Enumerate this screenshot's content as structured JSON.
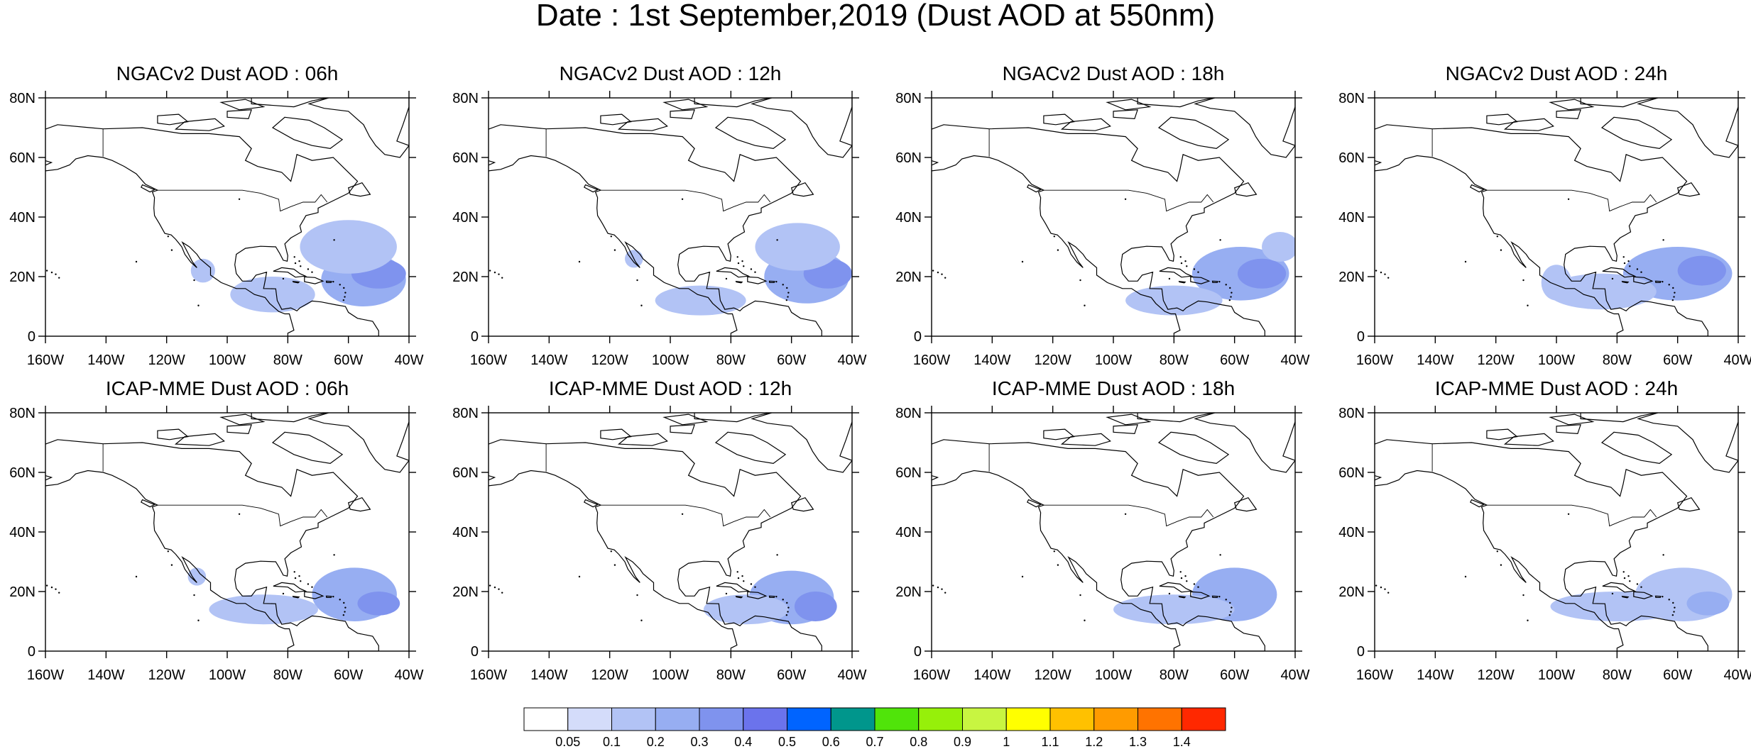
{
  "main_title": "Date : 1st September,2019 (Dust AOD at 550nm)",
  "map_extent": {
    "lon": [
      -160,
      -40
    ],
    "lat": [
      0,
      80
    ]
  },
  "x_tick_labels": [
    "160W",
    "140W",
    "120W",
    "100W",
    "80W",
    "60W",
    "40W"
  ],
  "y_tick_labels": [
    "0",
    "20N",
    "40N",
    "60N",
    "80N"
  ],
  "panels": [
    {
      "title": "NGACv2 Dust AOD : 06h",
      "model": "NGACv2",
      "hour": "06h",
      "dust": [
        {
          "cx": -55,
          "cy": 19,
          "rx": 14,
          "ry": 9,
          "aod": 0.25
        },
        {
          "cx": -50,
          "cy": 21,
          "rx": 9,
          "ry": 5,
          "aod": 0.35
        },
        {
          "cx": -85,
          "cy": 14,
          "rx": 14,
          "ry": 6,
          "aod": 0.15
        },
        {
          "cx": -108,
          "cy": 22,
          "rx": 4,
          "ry": 4,
          "aod": 0.15
        },
        {
          "cx": -60,
          "cy": 30,
          "rx": 16,
          "ry": 9,
          "aod": 0.12
        }
      ]
    },
    {
      "title": "NGACv2 Dust AOD : 12h",
      "model": "NGACv2",
      "hour": "12h",
      "dust": [
        {
          "cx": -55,
          "cy": 20,
          "rx": 14,
          "ry": 9,
          "aod": 0.25
        },
        {
          "cx": -48,
          "cy": 21,
          "rx": 8,
          "ry": 5,
          "aod": 0.35
        },
        {
          "cx": -90,
          "cy": 12,
          "rx": 15,
          "ry": 5,
          "aod": 0.15
        },
        {
          "cx": -112,
          "cy": 26,
          "rx": 3,
          "ry": 3,
          "aod": 0.12
        },
        {
          "cx": -58,
          "cy": 30,
          "rx": 14,
          "ry": 8,
          "aod": 0.12
        }
      ]
    },
    {
      "title": "NGACv2 Dust AOD : 18h",
      "model": "NGACv2",
      "hour": "18h",
      "dust": [
        {
          "cx": -58,
          "cy": 21,
          "rx": 16,
          "ry": 9,
          "aod": 0.25
        },
        {
          "cx": -51,
          "cy": 21,
          "rx": 8,
          "ry": 5,
          "aod": 0.35
        },
        {
          "cx": -80,
          "cy": 12,
          "rx": 16,
          "ry": 5,
          "aod": 0.15
        },
        {
          "cx": -45,
          "cy": 30,
          "rx": 6,
          "ry": 5,
          "aod": 0.12
        }
      ]
    },
    {
      "title": "NGACv2 Dust AOD : 24h",
      "model": "NGACv2",
      "hour": "24h",
      "dust": [
        {
          "cx": -60,
          "cy": 21,
          "rx": 18,
          "ry": 9,
          "aod": 0.25
        },
        {
          "cx": -52,
          "cy": 22,
          "rx": 8,
          "ry": 5,
          "aod": 0.3
        },
        {
          "cx": -85,
          "cy": 15,
          "rx": 18,
          "ry": 6,
          "aod": 0.15
        },
        {
          "cx": -100,
          "cy": 18,
          "rx": 5,
          "ry": 6,
          "aod": 0.12
        }
      ]
    },
    {
      "title": "ICAP-MME Dust AOD : 06h",
      "model": "ICAP-MME",
      "hour": "06h",
      "dust": [
        {
          "cx": -58,
          "cy": 19,
          "rx": 14,
          "ry": 9,
          "aod": 0.2
        },
        {
          "cx": -50,
          "cy": 16,
          "rx": 7,
          "ry": 4,
          "aod": 0.3
        },
        {
          "cx": -88,
          "cy": 14,
          "rx": 18,
          "ry": 5,
          "aod": 0.12
        },
        {
          "cx": -110,
          "cy": 25,
          "rx": 3,
          "ry": 3,
          "aod": 0.12
        }
      ]
    },
    {
      "title": "ICAP-MME Dust AOD : 12h",
      "model": "ICAP-MME",
      "hour": "12h",
      "dust": [
        {
          "cx": -60,
          "cy": 18,
          "rx": 14,
          "ry": 9,
          "aod": 0.2
        },
        {
          "cx": -52,
          "cy": 15,
          "rx": 7,
          "ry": 5,
          "aod": 0.3
        },
        {
          "cx": -75,
          "cy": 14,
          "rx": 14,
          "ry": 5,
          "aod": 0.12
        }
      ]
    },
    {
      "title": "ICAP-MME Dust AOD : 18h",
      "model": "ICAP-MME",
      "hour": "18h",
      "dust": [
        {
          "cx": -60,
          "cy": 19,
          "rx": 14,
          "ry": 9,
          "aod": 0.2
        },
        {
          "cx": -55,
          "cy": 16,
          "rx": 7,
          "ry": 4,
          "aod": 0.25
        },
        {
          "cx": -80,
          "cy": 14,
          "rx": 20,
          "ry": 5,
          "aod": 0.12
        }
      ]
    },
    {
      "title": "ICAP-MME Dust AOD : 24h",
      "model": "ICAP-MME",
      "hour": "24h",
      "dust": [
        {
          "cx": -58,
          "cy": 19,
          "rx": 16,
          "ry": 9,
          "aod": 0.18
        },
        {
          "cx": -50,
          "cy": 16,
          "rx": 7,
          "ry": 4,
          "aod": 0.25
        },
        {
          "cx": -80,
          "cy": 15,
          "rx": 22,
          "ry": 5,
          "aod": 0.12
        }
      ]
    }
  ],
  "colorbar": {
    "labels": [
      "0.05",
      "0.1",
      "0.2",
      "0.3",
      "0.4",
      "0.5",
      "0.6",
      "0.7",
      "0.8",
      "0.9",
      "1",
      "1.1",
      "1.2",
      "1.3",
      "1.4"
    ],
    "colors": [
      "#ffffff",
      "#d4dcfa",
      "#b2c3f5",
      "#97aef2",
      "#7f93ee",
      "#6b73ec",
      "#0064ff",
      "#00968c",
      "#50e40a",
      "#96f00a",
      "#c8f541",
      "#ffff00",
      "#ffc100",
      "#ff9b00",
      "#ff7300",
      "#ff2800"
    ]
  }
}
